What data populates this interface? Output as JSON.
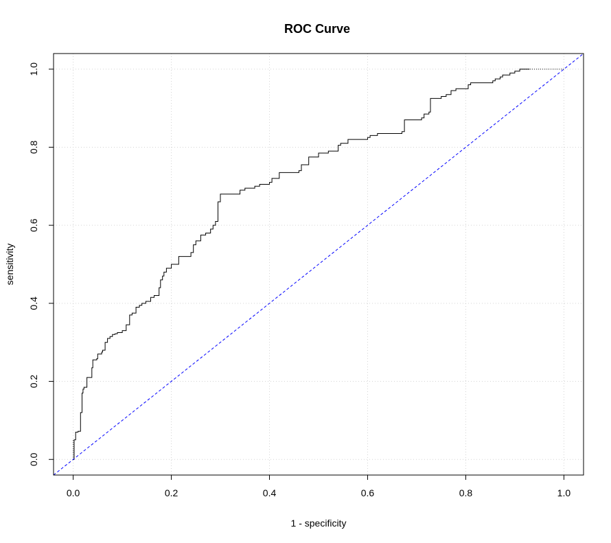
{
  "chart_data": {
    "type": "line",
    "title": "ROC Curve",
    "xlabel": "1 - specificity",
    "ylabel": "sensitivity",
    "xlim": [
      -0.04,
      1.04
    ],
    "ylim": [
      -0.04,
      1.04
    ],
    "x_ticks": [
      0.0,
      0.2,
      0.4,
      0.6,
      0.8,
      1.0
    ],
    "x_tick_labels": [
      "0.0",
      "0.2",
      "0.4",
      "0.6",
      "0.8",
      "1.0"
    ],
    "y_ticks": [
      0.0,
      0.2,
      0.4,
      0.6,
      0.8,
      1.0
    ],
    "y_tick_labels": [
      "0.0",
      "0.2",
      "0.4",
      "0.6",
      "0.8",
      "1.0"
    ],
    "grid": true,
    "colors": {
      "roc": "#000000",
      "reference": "#0000ff",
      "grid": "#d3d3d3"
    },
    "series": [
      {
        "style": "solid",
        "x": [
          0.0,
          0.002,
          0.005,
          0.01,
          0.015,
          0.018,
          0.02,
          0.022,
          0.028,
          0.03,
          0.038,
          0.04,
          0.048,
          0.05,
          0.058,
          0.06,
          0.065,
          0.07,
          0.075,
          0.08,
          0.085,
          0.09,
          0.1,
          0.108,
          0.115,
          0.12,
          0.128,
          0.135,
          0.14,
          0.148,
          0.158,
          0.165,
          0.175,
          0.178,
          0.182,
          0.185,
          0.19,
          0.2,
          0.215,
          0.24,
          0.245,
          0.25,
          0.26,
          0.27,
          0.28,
          0.285,
          0.29,
          0.295,
          0.3,
          0.34,
          0.35,
          0.37,
          0.38,
          0.4,
          0.405,
          0.42,
          0.46,
          0.465,
          0.48,
          0.5,
          0.52,
          0.54,
          0.545,
          0.56,
          0.6,
          0.605,
          0.62,
          0.67,
          0.675,
          0.71,
          0.715,
          0.725,
          0.728,
          0.75,
          0.76,
          0.77,
          0.78,
          0.805,
          0.81,
          0.81,
          0.855,
          0.86,
          0.87,
          0.875,
          0.89,
          0.9,
          0.91,
          0.92,
          0.93
        ],
        "y": [
          0.0,
          0.05,
          0.07,
          0.072,
          0.12,
          0.17,
          0.18,
          0.185,
          0.21,
          0.21,
          0.235,
          0.255,
          0.258,
          0.27,
          0.275,
          0.28,
          0.3,
          0.31,
          0.315,
          0.32,
          0.322,
          0.325,
          0.33,
          0.345,
          0.37,
          0.375,
          0.39,
          0.395,
          0.4,
          0.405,
          0.415,
          0.42,
          0.44,
          0.46,
          0.47,
          0.48,
          0.49,
          0.5,
          0.52,
          0.53,
          0.55,
          0.56,
          0.575,
          0.58,
          0.59,
          0.6,
          0.61,
          0.66,
          0.68,
          0.69,
          0.695,
          0.7,
          0.705,
          0.71,
          0.72,
          0.735,
          0.74,
          0.755,
          0.775,
          0.785,
          0.79,
          0.805,
          0.81,
          0.82,
          0.825,
          0.83,
          0.835,
          0.84,
          0.87,
          0.875,
          0.885,
          0.89,
          0.925,
          0.93,
          0.935,
          0.945,
          0.95,
          0.96,
          0.962,
          0.965,
          0.97,
          0.975,
          0.98,
          0.985,
          0.99,
          0.995,
          1.0,
          1.0,
          1.0
        ]
      },
      {
        "style": "dotted",
        "x": [
          0.0,
          0.0
        ],
        "y": [
          0.0,
          0.05
        ]
      },
      {
        "style": "dotted",
        "x": [
          0.91,
          1.0
        ],
        "y": [
          1.0,
          1.0
        ]
      },
      {
        "style": "dashed",
        "x": [
          -0.04,
          1.04
        ],
        "y": [
          -0.04,
          1.04
        ]
      }
    ]
  }
}
